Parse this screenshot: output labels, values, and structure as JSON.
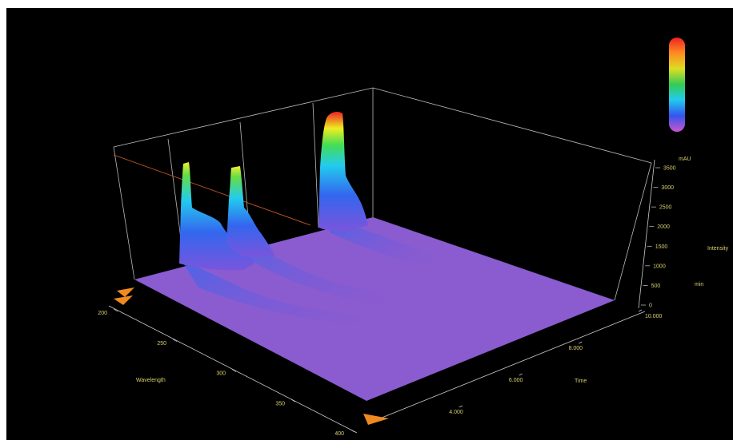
{
  "chart_data": {
    "type": "surface",
    "title": "",
    "colorbar": {
      "colors": [
        "#cc55cc",
        "#3355ee",
        "#22ccee",
        "#33cc55",
        "#dddd22",
        "#ff8822",
        "#ee2222"
      ]
    },
    "z_axis": {
      "unit": "mAU",
      "label": "Intensity",
      "range": [
        0,
        3500
      ],
      "ticks": [
        "3500",
        "3000",
        "2500",
        "2000",
        "1500",
        "1000",
        "500",
        "0"
      ],
      "time_unit": "min"
    },
    "time_axis": {
      "label": "Time",
      "range": [
        2.0,
        10.0
      ],
      "ticks": [
        "10.000",
        "8.000",
        "6.000",
        "4.000"
      ]
    },
    "wavelength_axis": {
      "label": "Wavelength",
      "range": [
        200,
        400
      ],
      "ticks": [
        "200",
        "250",
        "300",
        "350",
        "400"
      ]
    },
    "peaks": [
      {
        "time": 2.2,
        "wavelength": 200,
        "max_intensity": 2500
      },
      {
        "time": 3.4,
        "wavelength": 200,
        "max_intensity": 2300
      },
      {
        "time": 5.3,
        "wavelength": 200,
        "max_intensity": 3500
      }
    ],
    "baseline_color": "#8a5ccf"
  }
}
